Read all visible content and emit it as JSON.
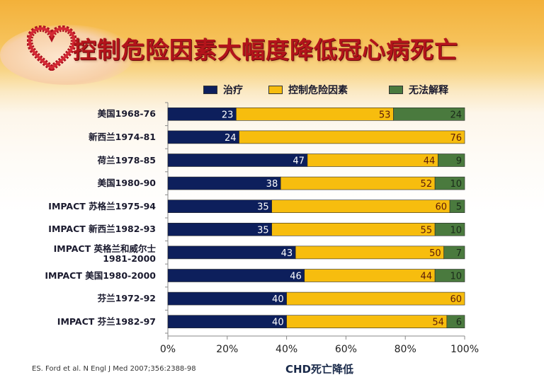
{
  "title": "控制危险因素大幅度降低冠心病死亡",
  "citation": "ES. Ford et al. N Engl J Med 2007;356:2388-98",
  "colors": {
    "treatment": "#0d1f5c",
    "risk": "#f7bd0e",
    "unexplained": "#4a7a3e",
    "title": "#b3141b"
  },
  "chart_data": {
    "type": "bar",
    "orientation": "horizontal",
    "stacked": true,
    "title": "控制危险因素大幅度降低冠心病死亡",
    "xlabel": "CHD死亡降低",
    "ylabel": "",
    "xlim": [
      0,
      100
    ],
    "xticks": [
      "0%",
      "20%",
      "40%",
      "60%",
      "80%",
      "100%"
    ],
    "legend_position": "top",
    "categories": [
      "美国1968-76",
      "新西兰1974-81",
      "荷兰1978-85",
      "美国1980-90",
      "IMPACT 苏格兰1975-94",
      "IMPACT 新西兰1982-93",
      "IMPACT 英格兰和威尔士 1981-2000",
      "IMPACT 美国1980-2000",
      "芬兰1972-92",
      "IMPACT 芬兰1982-97"
    ],
    "category_lines": [
      [
        "美国1968-76"
      ],
      [
        "新西兰1974-81"
      ],
      [
        "荷兰1978-85"
      ],
      [
        "美国1980-90"
      ],
      [
        "IMPACT 苏格兰1975-94"
      ],
      [
        "IMPACT 新西兰1982-93"
      ],
      [
        "IMPACT 英格兰和威尔士",
        "1981-2000"
      ],
      [
        "IMPACT 美国1980-2000"
      ],
      [
        "芬兰1972-92"
      ],
      [
        "IMPACT 芬兰1982-97"
      ]
    ],
    "series": [
      {
        "name": "治疗",
        "values": [
          23,
          24,
          47,
          38,
          35,
          35,
          43,
          46,
          40,
          40
        ]
      },
      {
        "name": "控制危险因素",
        "values": [
          53,
          76,
          44,
          52,
          60,
          55,
          50,
          44,
          60,
          54
        ]
      },
      {
        "name": "无法解释",
        "values": [
          24,
          0,
          9,
          10,
          5,
          10,
          7,
          10,
          0,
          6
        ]
      }
    ]
  }
}
